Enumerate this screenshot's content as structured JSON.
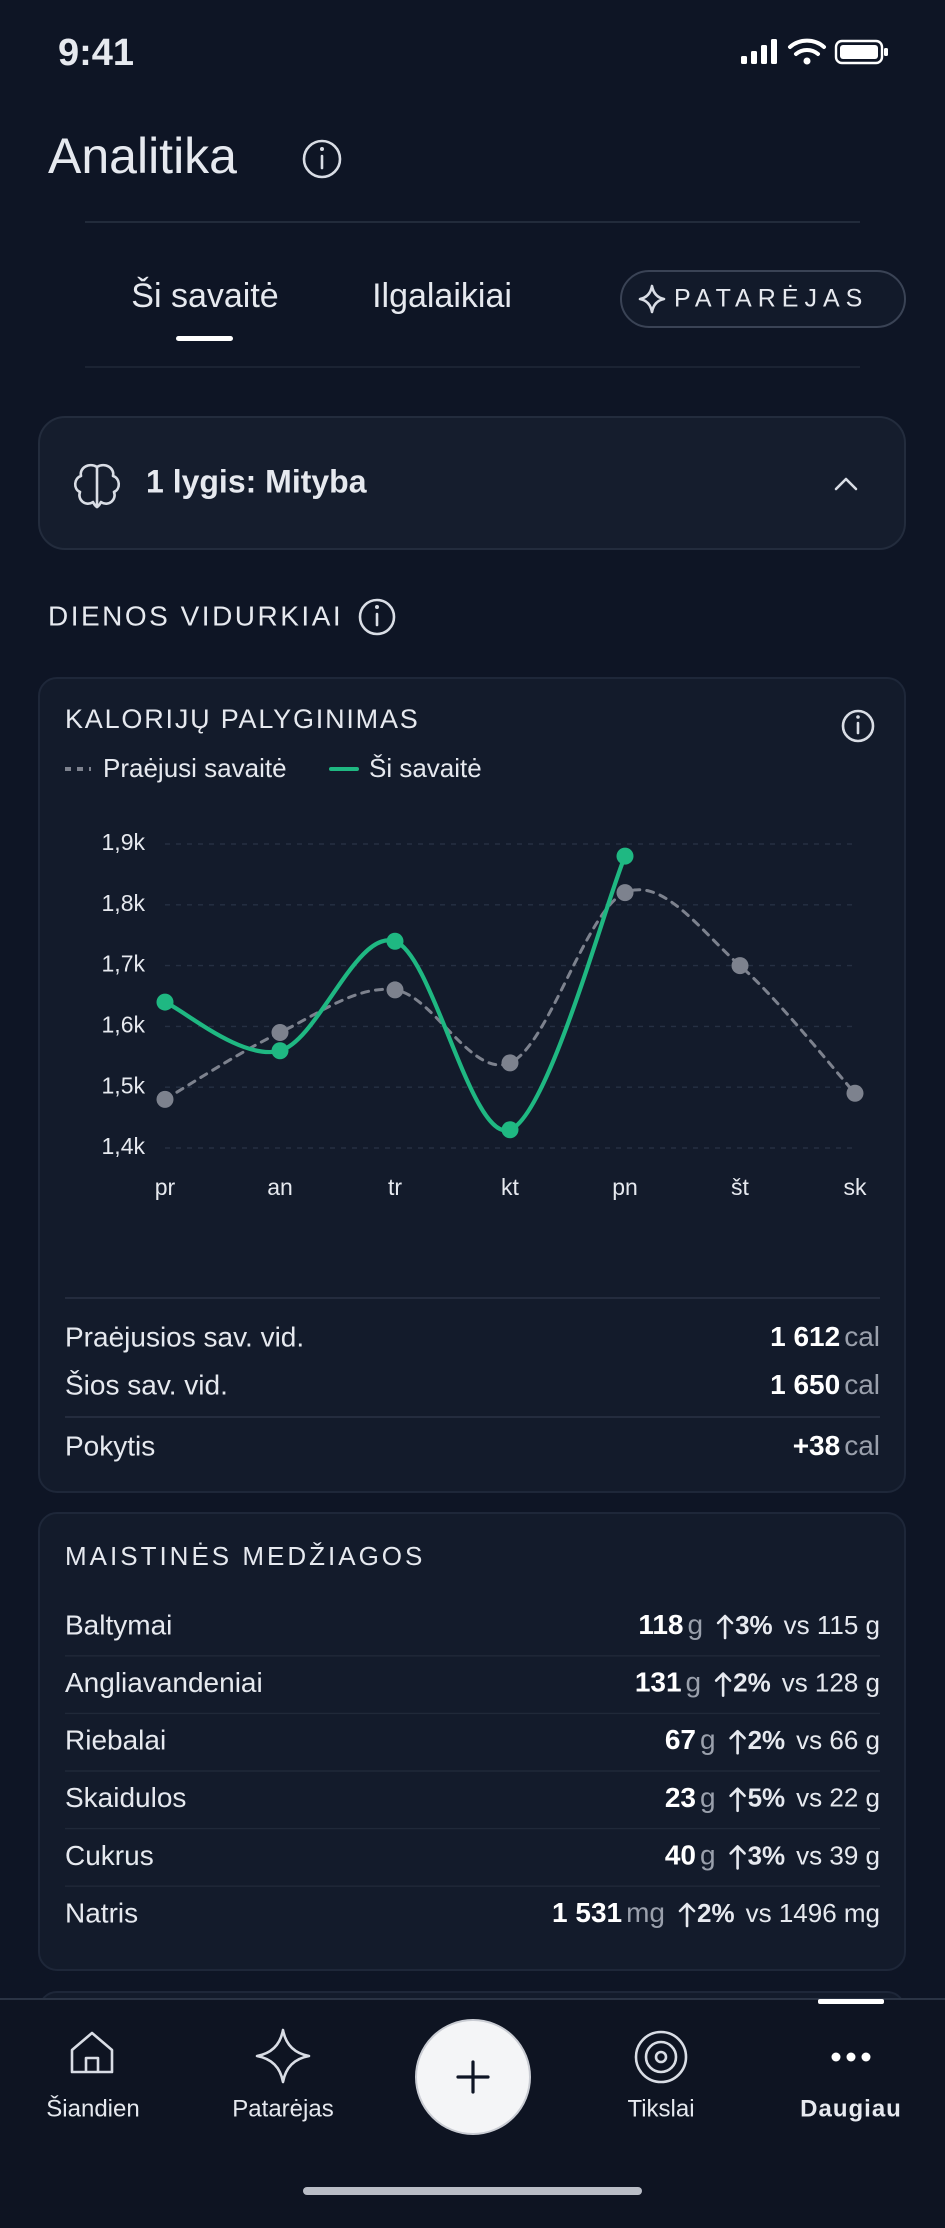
{
  "status_bar": {
    "time": "9:41"
  },
  "header": {
    "title": "Analitika"
  },
  "tabs": {
    "items": [
      "Ši savaitė",
      "Ilgalaikiai"
    ],
    "button": "PATARĖJAS"
  },
  "level_card": {
    "label": "1 lygis: Mityba"
  },
  "section": {
    "title": "DIENOS VIDURKIAI"
  },
  "chart_data": {
    "type": "line",
    "title": "KALORIJŲ PALYGINIMAS",
    "categories": [
      "pr",
      "an",
      "tr",
      "kt",
      "pn",
      "št",
      "sk"
    ],
    "series": [
      {
        "name": "Praėjusi savaitė",
        "color": "#7d828e",
        "style": "dashed",
        "values": [
          1480,
          1590,
          1660,
          1540,
          1820,
          1700,
          1490
        ]
      },
      {
        "name": "Ši savaitė",
        "color": "#1fb882",
        "style": "solid",
        "values": [
          1640,
          1560,
          1740,
          1430,
          1880,
          null,
          null
        ]
      }
    ],
    "ylim": [
      1400,
      1900
    ],
    "yticks": [
      {
        "value": 1400,
        "label": "1,4k"
      },
      {
        "value": 1500,
        "label": "1,5k"
      },
      {
        "value": 1600,
        "label": "1,6k"
      },
      {
        "value": 1700,
        "label": "1,7k"
      },
      {
        "value": 1800,
        "label": "1,8k"
      },
      {
        "value": 1900,
        "label": "1,9k"
      }
    ],
    "grid": true,
    "smooth": true
  },
  "summary": {
    "rows": [
      {
        "label": "Praėjusios sav. vid.",
        "value": "1 612",
        "unit": "cal"
      },
      {
        "label": "Šios sav. vid.",
        "value": "1 650",
        "unit": "cal"
      },
      {
        "label": "Pokytis",
        "value": "+38",
        "unit": "cal"
      }
    ]
  },
  "nutrients": {
    "title": "MAISTINĖS MEDŽIAGOS",
    "rows": [
      {
        "name": "Baltymai",
        "value": "118",
        "unit": "g",
        "change": "3%",
        "compare": "vs 115 g"
      },
      {
        "name": "Angliavandeniai",
        "value": "131",
        "unit": "g",
        "change": "2%",
        "compare": "vs 128 g"
      },
      {
        "name": "Riebalai",
        "value": "67",
        "unit": "g",
        "change": "2%",
        "compare": "vs 66 g"
      },
      {
        "name": "Skaidulos",
        "value": "23",
        "unit": "g",
        "change": "5%",
        "compare": "vs 22 g"
      },
      {
        "name": "Cukrus",
        "value": "40",
        "unit": "g",
        "change": "3%",
        "compare": "vs 39 g"
      },
      {
        "name": "Natris",
        "value": "1 531",
        "unit": "mg",
        "change": "2%",
        "compare": "vs 1496 mg"
      }
    ]
  },
  "nav": {
    "items": [
      "Šiandien",
      "Patarėjas",
      "Tikslai",
      "Daugiau"
    ]
  }
}
